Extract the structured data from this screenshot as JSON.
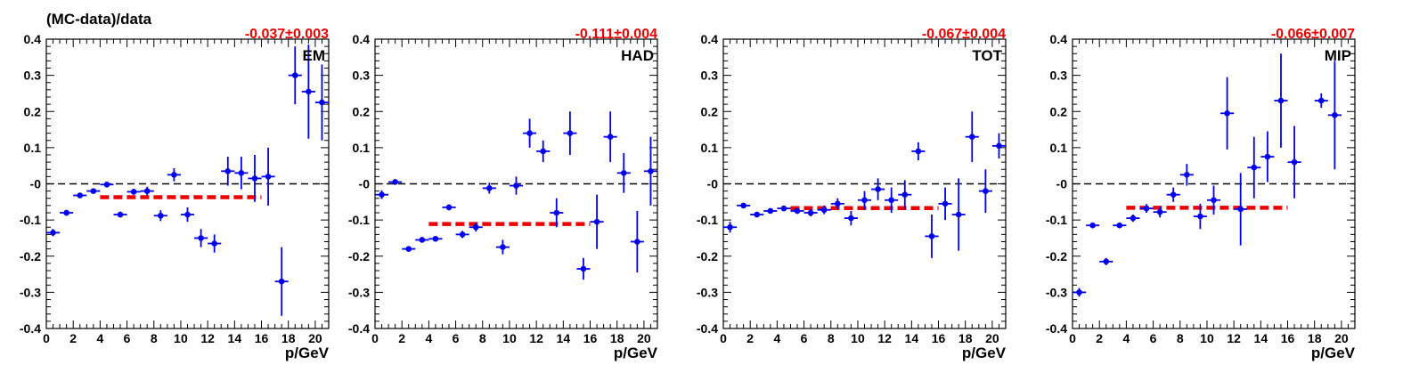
{
  "figure": {
    "ylabel": "(MC-data)/data"
  },
  "style": {
    "point_color": "#0000ee",
    "fit_color": "#ee0000",
    "zero_line_color": "#000000"
  },
  "chart_data": [
    {
      "type": "scatter",
      "panel_label": "EM",
      "fit_text": "-0.037±0.003",
      "xlabel": "p/GeV",
      "xlim": [
        0,
        21
      ],
      "ylim": [
        -0.4,
        0.4
      ],
      "x_ticks": [
        0,
        2,
        4,
        6,
        8,
        10,
        12,
        14,
        16,
        18,
        20
      ],
      "y_ticks": [
        "-0.4",
        "-0.3",
        "-0.2",
        "-0.1",
        "-0",
        "0.1",
        "0.2",
        "0.3",
        "0.4"
      ],
      "zero_line": 0,
      "fit": {
        "value": -0.037,
        "x_range": [
          4,
          16
        ]
      },
      "series": [
        {
          "x": [
            0.5,
            1.5,
            2.5,
            3.5,
            4.5,
            5.5,
            6.5,
            7.5,
            8.5,
            9.5,
            10.5,
            11.5,
            12.5,
            13.5,
            14.5,
            15.5,
            16.5,
            17.5,
            18.5,
            19.5,
            20.5
          ],
          "y": [
            -0.135,
            -0.08,
            -0.032,
            -0.02,
            -0.002,
            -0.085,
            -0.022,
            -0.02,
            -0.088,
            0.025,
            -0.085,
            -0.15,
            -0.165,
            0.035,
            0.03,
            0.015,
            0.02,
            -0.27,
            0.3,
            0.255,
            0.225
          ],
          "yerr": [
            0.01,
            0.008,
            0.006,
            0.006,
            0.005,
            0.008,
            0.008,
            0.012,
            0.015,
            0.018,
            0.02,
            0.025,
            0.025,
            0.04,
            0.045,
            0.065,
            0.08,
            0.095,
            0.08,
            0.13,
            0.105
          ]
        }
      ]
    },
    {
      "type": "scatter",
      "panel_label": "HAD",
      "fit_text": "-0.111±0.004",
      "xlabel": "p/GeV",
      "xlim": [
        0,
        21
      ],
      "ylim": [
        -0.4,
        0.4
      ],
      "x_ticks": [
        0,
        2,
        4,
        6,
        8,
        10,
        12,
        14,
        16,
        18,
        20
      ],
      "y_ticks": [
        "-0.4",
        "-0.3",
        "-0.2",
        "-0.1",
        "-0",
        "0.1",
        "0.2",
        "0.3",
        "0.4"
      ],
      "zero_line": 0,
      "fit": {
        "value": -0.111,
        "x_range": [
          4,
          16
        ]
      },
      "series": [
        {
          "x": [
            0.5,
            1.5,
            2.5,
            3.5,
            4.5,
            5.5,
            6.5,
            7.5,
            8.5,
            9.5,
            10.5,
            11.5,
            12.5,
            13.5,
            14.5,
            15.5,
            16.5,
            17.5,
            18.5,
            19.5,
            20.5
          ],
          "y": [
            -0.03,
            0.005,
            -0.18,
            -0.155,
            -0.152,
            -0.065,
            -0.14,
            -0.12,
            -0.012,
            -0.175,
            -0.005,
            0.14,
            0.09,
            -0.08,
            0.14,
            -0.235,
            -0.105,
            0.13,
            0.03,
            -0.16,
            0.035
          ],
          "yerr": [
            0.012,
            0.006,
            0.006,
            0.006,
            0.006,
            0.008,
            0.01,
            0.012,
            0.015,
            0.02,
            0.025,
            0.04,
            0.03,
            0.04,
            0.06,
            0.03,
            0.075,
            0.07,
            0.055,
            0.085,
            0.095
          ]
        }
      ]
    },
    {
      "type": "scatter",
      "panel_label": "TOT",
      "fit_text": "-0.067±0.004",
      "xlabel": "p/GeV",
      "xlim": [
        0,
        21
      ],
      "ylim": [
        -0.4,
        0.4
      ],
      "x_ticks": [
        0,
        2,
        4,
        6,
        8,
        10,
        12,
        14,
        16,
        18,
        20
      ],
      "y_ticks": [
        "-0.4",
        "-0.3",
        "-0.2",
        "-0.1",
        "-0",
        "0.1",
        "0.2",
        "0.3",
        "0.4"
      ],
      "zero_line": 0,
      "fit": {
        "value": -0.067,
        "x_range": [
          5,
          16
        ]
      },
      "series": [
        {
          "x": [
            0.5,
            1.5,
            2.5,
            3.5,
            4.5,
            5.5,
            6.5,
            7.5,
            8.5,
            9.5,
            10.5,
            11.5,
            12.5,
            13.5,
            14.5,
            15.5,
            16.5,
            17.5,
            18.5,
            19.5,
            20.5
          ],
          "y": [
            -0.12,
            -0.06,
            -0.085,
            -0.075,
            -0.068,
            -0.075,
            -0.08,
            -0.072,
            -0.055,
            -0.095,
            -0.045,
            -0.015,
            -0.045,
            -0.03,
            0.09,
            -0.145,
            -0.055,
            -0.085,
            0.13,
            -0.02,
            0.105
          ],
          "yerr": [
            0.015,
            0.007,
            0.007,
            0.006,
            0.006,
            0.008,
            0.01,
            0.012,
            0.015,
            0.02,
            0.025,
            0.03,
            0.035,
            0.04,
            0.025,
            0.06,
            0.045,
            0.1,
            0.07,
            0.06,
            0.035
          ]
        }
      ]
    },
    {
      "type": "scatter",
      "panel_label": "MIP",
      "fit_text": "-0.066±0.007",
      "xlabel": "p/GeV",
      "xlim": [
        0,
        21
      ],
      "ylim": [
        -0.4,
        0.4
      ],
      "x_ticks": [
        0,
        2,
        4,
        6,
        8,
        10,
        12,
        14,
        16,
        18,
        20
      ],
      "y_ticks": [
        "-0.4",
        "-0.3",
        "-0.2",
        "-0.1",
        "-0",
        "0.1",
        "0.2",
        "0.3",
        "0.4"
      ],
      "zero_line": 0,
      "fit": {
        "value": -0.066,
        "x_range": [
          4,
          16
        ]
      },
      "series": [
        {
          "x": [
            0.5,
            1.5,
            2.5,
            3.5,
            4.5,
            5.5,
            6.5,
            7.5,
            8.5,
            9.5,
            10.5,
            11.5,
            12.5,
            13.5,
            14.5,
            15.5,
            16.5,
            18.5,
            19.5
          ],
          "y": [
            -0.3,
            -0.115,
            -0.215,
            -0.115,
            -0.095,
            -0.068,
            -0.078,
            -0.03,
            0.025,
            -0.09,
            -0.045,
            0.195,
            -0.07,
            0.045,
            0.075,
            0.23,
            0.06,
            0.23,
            0.19
          ],
          "yerr": [
            0.012,
            0.006,
            0.01,
            0.007,
            0.01,
            0.012,
            0.015,
            0.02,
            0.03,
            0.035,
            0.04,
            0.1,
            0.1,
            0.085,
            0.07,
            0.13,
            0.1,
            0.02,
            0.15
          ]
        }
      ]
    }
  ]
}
